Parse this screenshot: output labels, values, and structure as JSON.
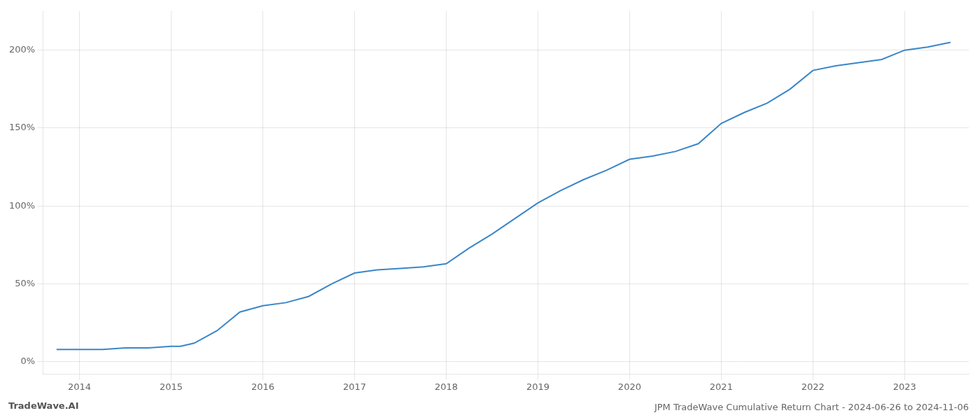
{
  "chart_data": {
    "type": "line",
    "title": "JPM TradeWave Cumulative Return Chart - 2024-06-26 to 2024-11-06",
    "annotations": [
      "TradeWave.AI"
    ],
    "x": [
      2013.75,
      2014.0,
      2014.25,
      2014.5,
      2014.75,
      2015.0,
      2015.1,
      2015.25,
      2015.5,
      2015.75,
      2016.0,
      2016.25,
      2016.5,
      2016.75,
      2017.0,
      2017.25,
      2017.5,
      2017.75,
      2018.0,
      2018.25,
      2018.5,
      2018.75,
      2019.0,
      2019.25,
      2019.5,
      2019.75,
      2020.0,
      2020.25,
      2020.5,
      2020.75,
      2021.0,
      2021.25,
      2021.5,
      2021.75,
      2022.0,
      2022.25,
      2022.5,
      2022.75,
      2023.0,
      2023.25,
      2023.5
    ],
    "values": [
      8,
      8,
      8,
      9,
      9,
      10,
      10,
      12,
      20,
      32,
      36,
      38,
      42,
      50,
      57,
      59,
      60,
      61,
      63,
      73,
      82,
      92,
      102,
      110,
      117,
      123,
      130,
      132,
      135,
      140,
      153,
      160,
      166,
      175,
      187,
      190,
      192,
      194,
      200,
      202,
      205
    ],
    "color": "#3a86c8",
    "xlim": [
      2013.6,
      2023.7
    ],
    "ylim": [
      -8,
      225
    ],
    "xticks": [
      2014,
      2015,
      2016,
      2017,
      2018,
      2019,
      2020,
      2021,
      2022,
      2023
    ],
    "yticks": [
      {
        "value": 0,
        "label": "0%"
      },
      {
        "value": 50,
        "label": "50%"
      },
      {
        "value": 100,
        "label": "100%"
      },
      {
        "value": 150,
        "label": "150%"
      },
      {
        "value": 200,
        "label": "200%"
      }
    ],
    "grid": true
  }
}
